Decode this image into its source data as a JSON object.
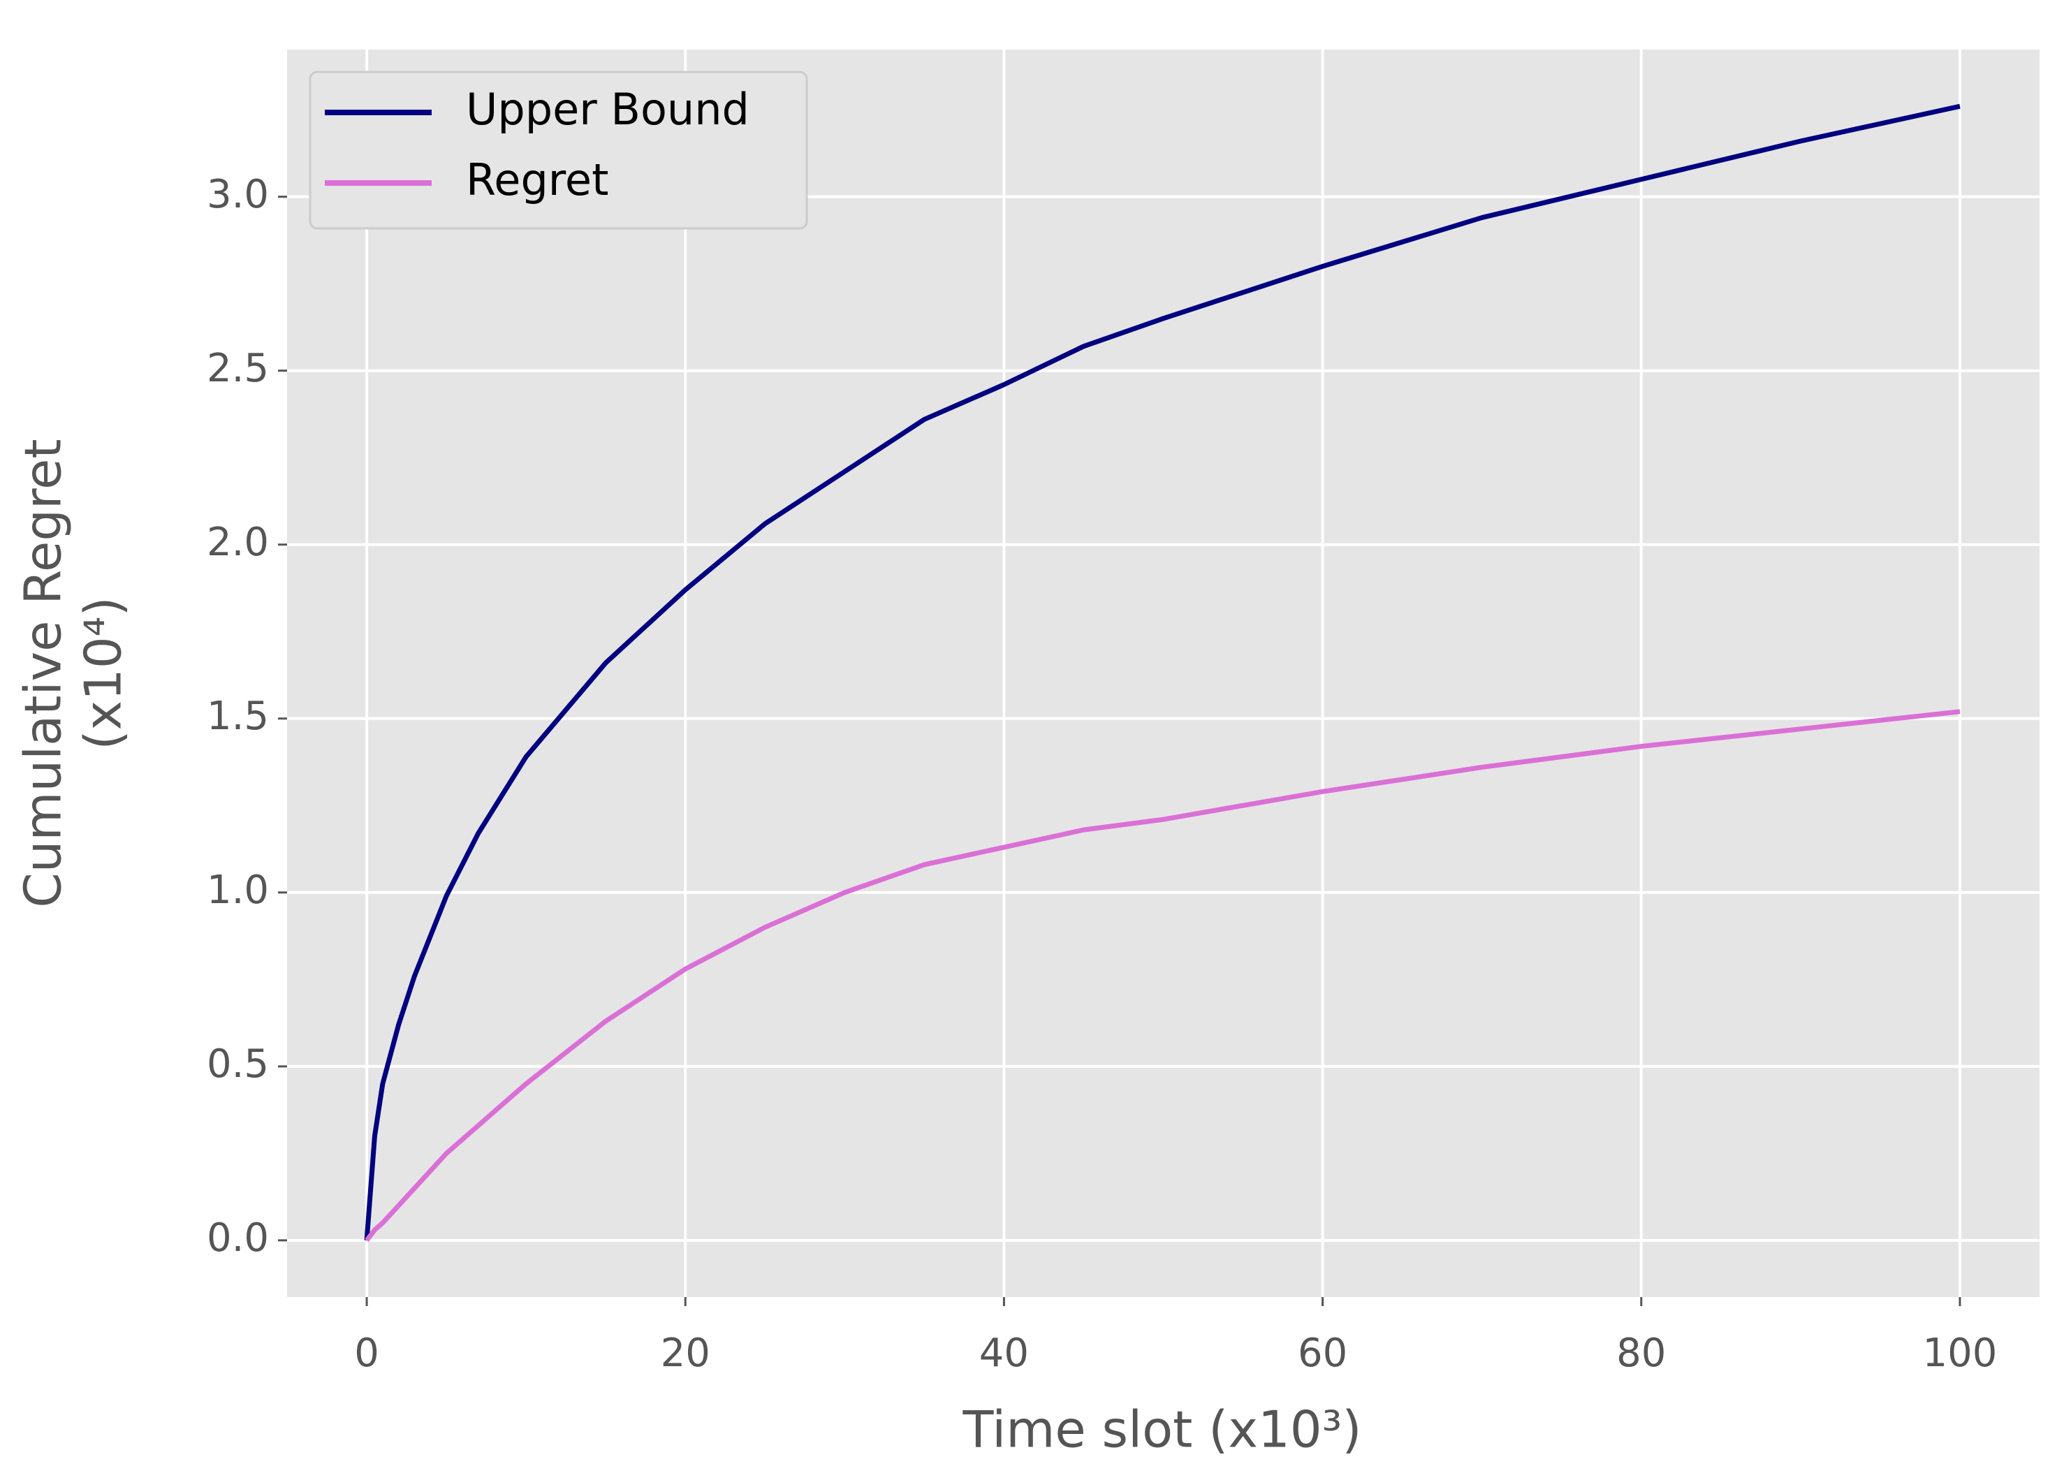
{
  "chart_data": {
    "type": "line",
    "xlabel": "Time slot (x10³)",
    "ylabel": [
      "Cumulative Regret",
      "(x10⁴)"
    ],
    "x": [
      0,
      0.5,
      1,
      2,
      3,
      5,
      7,
      10,
      15,
      20,
      25,
      30,
      35,
      40,
      45,
      50,
      60,
      70,
      80,
      90,
      100
    ],
    "series": [
      {
        "name": "Upper Bound",
        "color": "#000080",
        "values": [
          0,
          0.3,
          0.45,
          0.62,
          0.76,
          0.99,
          1.17,
          1.39,
          1.66,
          1.87,
          2.06,
          2.21,
          2.36,
          2.46,
          2.57,
          2.65,
          2.8,
          2.94,
          3.05,
          3.16,
          3.26
        ]
      },
      {
        "name": "Regret",
        "color": "#da70d6",
        "values": [
          0,
          0.03,
          0.05,
          0.1,
          0.15,
          0.25,
          0.33,
          0.45,
          0.63,
          0.78,
          0.9,
          1.0,
          1.08,
          1.13,
          1.18,
          1.21,
          1.29,
          1.36,
          1.42,
          1.47,
          1.52
        ]
      }
    ],
    "xlim": [
      -5,
      105
    ],
    "ylim": [
      -0.163,
      3.423
    ],
    "xticks": [
      0,
      20,
      40,
      60,
      80,
      100
    ],
    "yticks": [
      {
        "value": 0,
        "label": "0.0"
      },
      0.5,
      {
        "value": 1,
        "label": "1.0"
      },
      1.5,
      {
        "value": 2,
        "label": "2.0"
      },
      2.5,
      {
        "value": 3,
        "label": "3.0"
      }
    ],
    "grid": true,
    "legend": "upper left"
  }
}
